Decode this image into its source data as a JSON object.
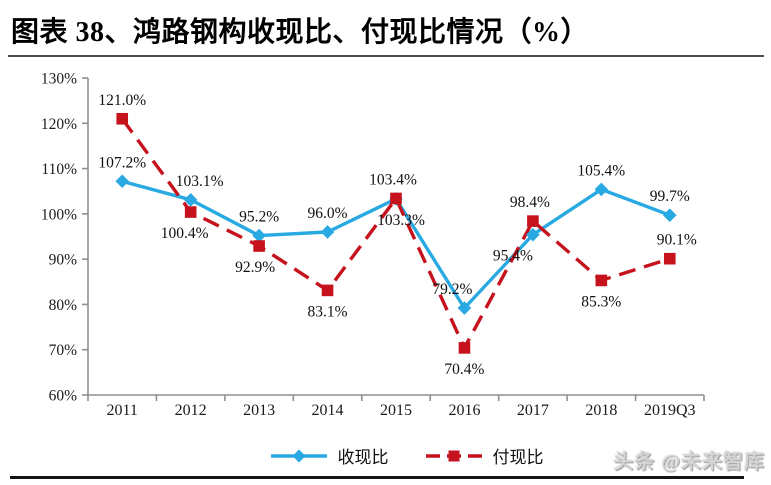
{
  "figure": {
    "title": "图表 38、鸿路钢构收现比、付现比情况（%）",
    "watermark": "头条 @未来智库"
  },
  "chart_data": {
    "type": "line",
    "title": "图表 38、鸿路钢构收现比、付现比情况（%）",
    "categories": [
      "2011",
      "2012",
      "2013",
      "2014",
      "2015",
      "2016",
      "2017",
      "2018",
      "2019Q3"
    ],
    "series": [
      {
        "name": "收现比",
        "color": "#29A9E1",
        "line_style": "solid",
        "marker": "diamond",
        "values": [
          107.2,
          103.1,
          95.2,
          96.0,
          103.3,
          79.2,
          95.4,
          105.4,
          99.7
        ],
        "labels": [
          "107.2%",
          "103.1%",
          "95.2%",
          "96.0%",
          "103.3%",
          "79.2%",
          "95.4%",
          "105.4%",
          "99.7%"
        ],
        "label_positions": [
          "above",
          "above",
          "above",
          "above",
          "below",
          "above",
          "below",
          "above",
          "above"
        ],
        "label_dx": [
          0,
          9,
          0,
          0,
          5,
          -12,
          -20,
          0,
          0
        ]
      },
      {
        "name": "付现比",
        "color": "#C5121D",
        "line_style": "dashed",
        "marker": "square",
        "values": [
          121.0,
          100.4,
          92.9,
          83.1,
          103.4,
          70.4,
          98.4,
          85.3,
          90.1
        ],
        "labels": [
          "121.0%",
          "100.4%",
          "92.9%",
          "83.1%",
          "103.4%",
          "70.4%",
          "98.4%",
          "85.3%",
          "90.1%"
        ],
        "label_positions": [
          "above",
          "below",
          "below",
          "below",
          "above",
          "below",
          "above",
          "below",
          "above"
        ],
        "label_dx": [
          0,
          -6,
          -4,
          0,
          -3,
          0,
          -3,
          0,
          7
        ]
      }
    ],
    "ylim": [
      60,
      130
    ],
    "ytick_step": 10,
    "ytick_labels": [
      "60%",
      "70%",
      "80%",
      "90%",
      "100%",
      "110%",
      "120%",
      "130%"
    ],
    "grid": false,
    "legend_position": "bottom",
    "axis_color": "#8f8f8f",
    "label_color": "#1a1a1a"
  }
}
